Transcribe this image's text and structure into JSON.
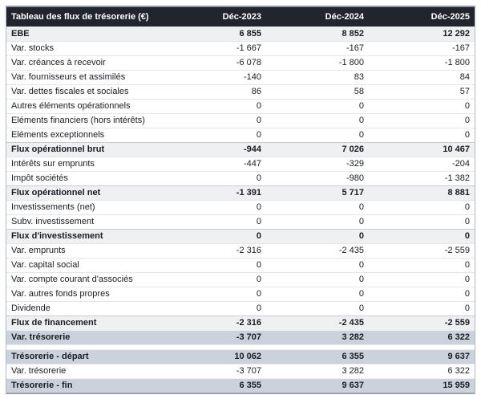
{
  "table": {
    "title": "Tableau des flux de trésorerie (€)",
    "columns": [
      "Déc-2023",
      "Déc-2024",
      "Déc-2025"
    ],
    "colors": {
      "header_bg": "#22252d",
      "header_text": "#ffffff",
      "section_row_bg": "#eef0f2",
      "total_row_bg": "#ccd2db",
      "body_text": "#1a1d23",
      "outer_border": "#8e959e"
    },
    "rows": [
      {
        "label": "EBE",
        "values": [
          "6 855",
          "8 852",
          "12 292"
        ],
        "style": "section"
      },
      {
        "label": "Var. stocks",
        "values": [
          "-1 667",
          "-167",
          "-167"
        ],
        "style": "normal"
      },
      {
        "label": "Var. créances à recevoir",
        "values": [
          "-6 078",
          "-1 800",
          "-1 800"
        ],
        "style": "normal"
      },
      {
        "label": "Var. fournisseurs et assimilés",
        "values": [
          "-140",
          "83",
          "84"
        ],
        "style": "normal"
      },
      {
        "label": "Var. dettes fiscales et sociales",
        "values": [
          "86",
          "58",
          "57"
        ],
        "style": "normal"
      },
      {
        "label": "Autres éléments opérationnels",
        "values": [
          "0",
          "0",
          "0"
        ],
        "style": "normal"
      },
      {
        "label": "Eléments financiers (hors intérêts)",
        "values": [
          "0",
          "0",
          "0"
        ],
        "style": "normal"
      },
      {
        "label": "Eléments exceptionnels",
        "values": [
          "0",
          "0",
          "0"
        ],
        "style": "normal"
      },
      {
        "label": "Flux opérationnel brut",
        "values": [
          "-944",
          "7 026",
          "10 467"
        ],
        "style": "section"
      },
      {
        "label": "Intérêts sur emprunts",
        "values": [
          "-447",
          "-329",
          "-204"
        ],
        "style": "normal"
      },
      {
        "label": "Impôt sociétés",
        "values": [
          "0",
          "-980",
          "-1 382"
        ],
        "style": "normal"
      },
      {
        "label": "Flux opérationnel net",
        "values": [
          "-1 391",
          "5 717",
          "8 881"
        ],
        "style": "section"
      },
      {
        "label": "Investissements (net)",
        "values": [
          "0",
          "0",
          "0"
        ],
        "style": "normal"
      },
      {
        "label": "Subv. investissement",
        "values": [
          "0",
          "0",
          "0"
        ],
        "style": "normal"
      },
      {
        "label": "Flux d'investissement",
        "values": [
          "0",
          "0",
          "0"
        ],
        "style": "section"
      },
      {
        "label": "Var. emprunts",
        "values": [
          "-2 316",
          "-2 435",
          "-2 559"
        ],
        "style": "normal"
      },
      {
        "label": "Var. capital social",
        "values": [
          "0",
          "0",
          "0"
        ],
        "style": "normal"
      },
      {
        "label": "Var. compte courant d'associés",
        "values": [
          "0",
          "0",
          "0"
        ],
        "style": "normal"
      },
      {
        "label": "Var. autres fonds propres",
        "values": [
          "0",
          "0",
          "0"
        ],
        "style": "normal"
      },
      {
        "label": "Dividende",
        "values": [
          "0",
          "0",
          "0"
        ],
        "style": "normal"
      },
      {
        "label": "Flux de financement",
        "values": [
          "-2 316",
          "-2 435",
          "-2 559"
        ],
        "style": "section"
      },
      {
        "label": "Var. trésorerie",
        "values": [
          "-3 707",
          "3 282",
          "6 322"
        ],
        "style": "total"
      },
      {
        "style": "spacer"
      },
      {
        "label": "Trésorerie - départ",
        "values": [
          "10 062",
          "6 355",
          "9 637"
        ],
        "style": "total"
      },
      {
        "label": "Var. trésorerie",
        "values": [
          "-3 707",
          "3 282",
          "6 322"
        ],
        "style": "normal"
      },
      {
        "label": "Trésorerie - fin",
        "values": [
          "6 355",
          "9 637",
          "15 959"
        ],
        "style": "total"
      }
    ]
  }
}
